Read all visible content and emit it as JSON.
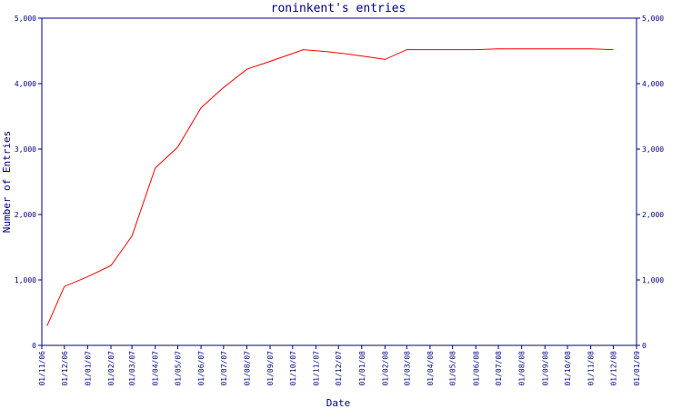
{
  "chart_data": {
    "type": "line",
    "title": "roninkent's entries",
    "xlabel": "Date",
    "ylabel": "Number of Entries",
    "ylim": [
      0,
      5000
    ],
    "yticks": [
      0,
      1000,
      2000,
      3000,
      4000,
      5000
    ],
    "ytick_labels": [
      "0",
      "1,000",
      "2,000",
      "3,000",
      "4,000",
      "5,000"
    ],
    "x_tick_labels": [
      "01/11/06",
      "01/12/06",
      "01/01/07",
      "01/02/07",
      "01/03/07",
      "01/04/07",
      "01/05/07",
      "01/06/07",
      "01/07/07",
      "01/08/07",
      "01/09/07",
      "01/10/07",
      "01/11/07",
      "01/12/07",
      "01/01/08",
      "01/02/08",
      "01/03/08",
      "01/04/08",
      "01/05/08",
      "01/06/08",
      "01/07/08",
      "01/08/08",
      "01/09/08",
      "01/10/08",
      "01/11/08",
      "01/12/08",
      "01/01/09"
    ],
    "grid": false,
    "colors": {
      "axis": "#000080",
      "line": "#ff0000",
      "text": "#000080"
    },
    "series": [
      {
        "x": [
          "2006-11-08",
          "2006-12-01",
          "2007-01-01",
          "2007-02-01",
          "2007-03-01",
          "2007-04-01",
          "2007-05-01",
          "2007-06-01",
          "2007-07-01",
          "2007-08-01",
          "2007-09-01",
          "2007-10-01",
          "2007-10-15",
          "2007-11-15",
          "2007-12-15",
          "2008-01-15",
          "2008-02-01",
          "2008-03-01",
          "2008-04-01",
          "2008-05-01",
          "2008-06-01",
          "2008-07-01",
          "2008-08-01",
          "2008-09-01",
          "2008-10-01",
          "2008-11-01",
          "2008-12-01"
        ],
        "values": [
          300,
          900,
          1050,
          1220,
          1670,
          2710,
          3030,
          3630,
          3940,
          4220,
          4340,
          4460,
          4520,
          4490,
          4450,
          4400,
          4370,
          4520,
          4520,
          4520,
          4520,
          4530,
          4530,
          4530,
          4530,
          4530,
          4520
        ]
      }
    ]
  }
}
